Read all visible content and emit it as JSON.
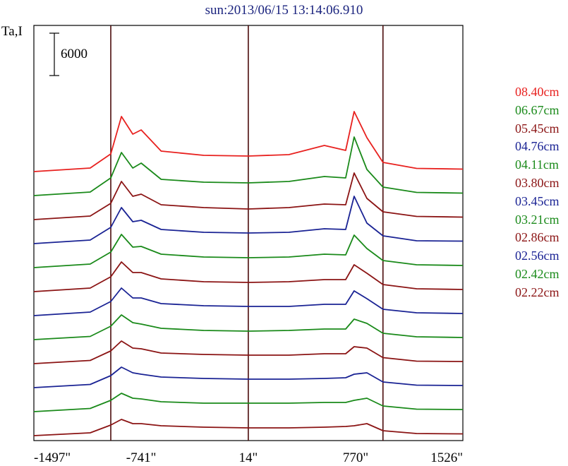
{
  "chart_data": {
    "type": "line",
    "title": "sun:2013/06/15 13:14:06.910",
    "ylabel": "Ta,I",
    "scale_bar_label": "6000",
    "scale_bar_value": 6000,
    "x_tick_labels": [
      "-1497\"",
      "-741\"",
      "14\"",
      "770\"",
      "1526\""
    ],
    "x_ticks": [
      -1497,
      -741,
      14,
      770,
      1526
    ],
    "xlim": [
      -1497,
      1526
    ],
    "vertical_lines": [
      -955,
      14,
      963
    ],
    "grid": false,
    "legend_position": "right",
    "series": [
      {
        "name": "08.40cm",
        "color": "#e8211f",
        "values": [
          0,
          500,
          2500,
          7800,
          5300,
          5900,
          2900,
          2300,
          2200,
          2400,
          3700,
          3000,
          8500,
          4800,
          1300,
          450,
          350
        ]
      },
      {
        "name": "06.67cm",
        "color": "#1a8a1a",
        "values": [
          0,
          500,
          2500,
          6100,
          3900,
          4600,
          2300,
          1900,
          1800,
          2000,
          2700,
          2500,
          8300,
          3700,
          1200,
          450,
          350
        ]
      },
      {
        "name": "05.45cm",
        "color": "#8b1414",
        "values": [
          0,
          500,
          2300,
          5400,
          3300,
          3600,
          2100,
          1700,
          1500,
          1700,
          2200,
          2100,
          6600,
          3000,
          1100,
          450,
          350
        ]
      },
      {
        "name": "04.76cm",
        "color": "#1a2394",
        "values": [
          0,
          500,
          2300,
          5100,
          3100,
          3300,
          2000,
          1600,
          1500,
          1600,
          2100,
          2000,
          6700,
          2900,
          1100,
          400,
          350
        ]
      },
      {
        "name": "04.11cm",
        "color": "#1a8a1a",
        "values": [
          0,
          500,
          2200,
          4700,
          2900,
          3000,
          1900,
          1500,
          1400,
          1500,
          1900,
          1800,
          4600,
          2700,
          1000,
          400,
          300
        ]
      },
      {
        "name": "03.80cm",
        "color": "#8b1414",
        "values": [
          0,
          500,
          2100,
          4200,
          2700,
          2700,
          1800,
          1400,
          1300,
          1400,
          1700,
          1700,
          3800,
          2600,
          1000,
          400,
          300
        ]
      },
      {
        "name": "03.45cm",
        "color": "#1a2394",
        "values": [
          0,
          500,
          2000,
          3900,
          2500,
          2500,
          1700,
          1400,
          1300,
          1300,
          1600,
          1600,
          3500,
          2400,
          900,
          400,
          300
        ]
      },
      {
        "name": "03.21cm",
        "color": "#1a8a1a",
        "values": [
          0,
          450,
          1900,
          3500,
          2400,
          2200,
          1600,
          1300,
          1200,
          1300,
          1500,
          1500,
          2900,
          2300,
          900,
          400,
          300
        ]
      },
      {
        "name": "02.86cm",
        "color": "#8b1414",
        "values": [
          0,
          450,
          1800,
          3200,
          2200,
          2100,
          1500,
          1300,
          1200,
          1200,
          1400,
          1400,
          2400,
          2200,
          850,
          350,
          300
        ]
      },
      {
        "name": "02.56cm",
        "color": "#1a2394",
        "values": [
          0,
          450,
          1700,
          2900,
          2100,
          1900,
          1500,
          1300,
          1200,
          1200,
          1300,
          1400,
          1900,
          2100,
          800,
          350,
          300
        ]
      },
      {
        "name": "02.42cm",
        "color": "#1a8a1a",
        "values": [
          0,
          450,
          1600,
          2600,
          1900,
          1800,
          1400,
          1200,
          1200,
          1200,
          1300,
          1300,
          1600,
          1900,
          800,
          350,
          300
        ]
      },
      {
        "name": "02.22cm",
        "color": "#8b1414",
        "values": [
          0,
          400,
          1500,
          2300,
          1700,
          1700,
          1400,
          1200,
          1100,
          1100,
          1200,
          1300,
          1400,
          1700,
          700,
          300,
          250
        ]
      }
    ],
    "x": [
      -1497,
      -1100,
      -955,
      -880,
      -800,
      -741,
      -600,
      -300,
      14,
      300,
      550,
      700,
      760,
      850,
      963,
      1200,
      1526
    ]
  }
}
